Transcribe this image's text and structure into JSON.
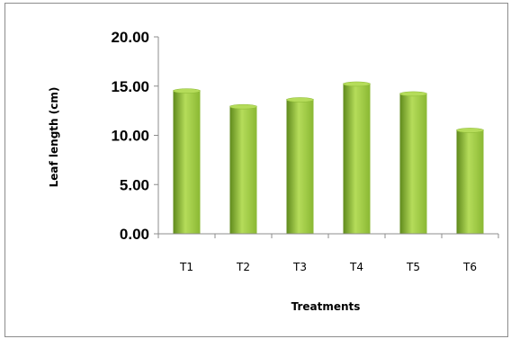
{
  "chart_data": {
    "type": "bar",
    "categories": [
      "T1",
      "T2",
      "T3",
      "T4",
      "T5",
      "T6"
    ],
    "values": [
      14.6,
      13.0,
      13.7,
      15.3,
      14.3,
      10.6
    ],
    "xlabel": "Treatments",
    "ylabel": "Leaf length (cm)",
    "ylim": [
      0,
      20
    ],
    "yticks": [
      "0.00",
      "5.00",
      "10.00",
      "15.00",
      "20.00"
    ],
    "grid": false,
    "legend": "none",
    "colors": {
      "bar_light": "#b5dc5a",
      "bar_mid": "#8ab833",
      "bar_dark": "#5f8a1c",
      "axis": "#8c8c8c"
    }
  }
}
